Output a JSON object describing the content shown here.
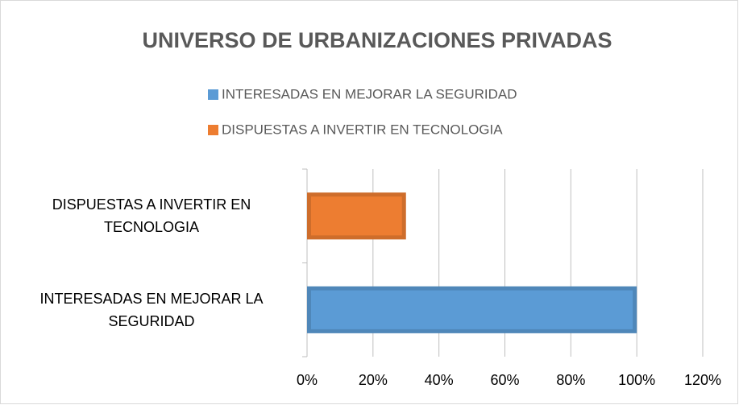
{
  "chart_data": {
    "type": "barh",
    "title": "UNIVERSO DE URBANIZACIONES PRIVADAS",
    "categories": [
      "INTERESADAS EN MEJORAR LA SEGURIDAD",
      "DISPUESTAS A INVERTIR EN TECNOLOGIA"
    ],
    "series": [
      {
        "name": "INTERESADAS EN MEJORAR LA SEGURIDAD",
        "color": "#5b9bd5",
        "values": [
          100,
          null
        ]
      },
      {
        "name": "DISPUESTAS A INVERTIR EN TECNOLOGIA",
        "color": "#ed7d31",
        "values": [
          null,
          30
        ]
      }
    ],
    "xlim": [
      0,
      120
    ],
    "xticks": [
      {
        "value": 0,
        "label": "0%"
      },
      {
        "value": 20,
        "label": "20%"
      },
      {
        "value": 40,
        "label": "40%"
      },
      {
        "value": 60,
        "label": "60%"
      },
      {
        "value": 80,
        "label": "80%"
      },
      {
        "value": 100,
        "label": "100%"
      },
      {
        "value": 120,
        "label": "120%"
      }
    ],
    "grid": true,
    "legend": "top"
  }
}
